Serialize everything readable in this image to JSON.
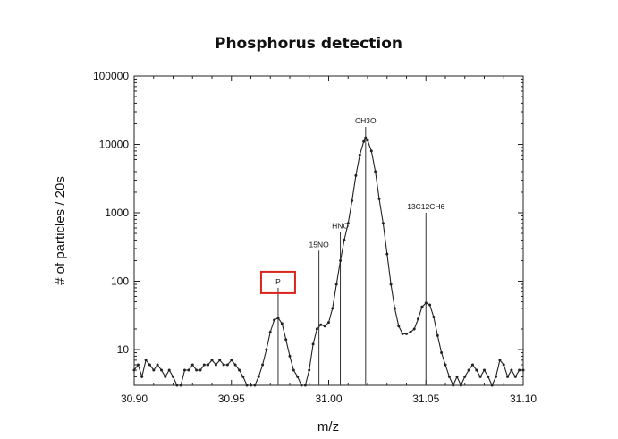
{
  "chart_data": {
    "type": "line",
    "title": "Phosphorus detection",
    "xlabel": "m/z",
    "ylabel": "# of particles / 20s",
    "xlim": [
      30.9,
      31.1
    ],
    "ylim": [
      3,
      100000
    ],
    "yscale": "log",
    "grid": false,
    "x_ticks": [
      "30.90",
      "30.95",
      "31.00",
      "31.05",
      "31.10"
    ],
    "x_tick_values": [
      30.9,
      30.95,
      31.0,
      31.05,
      31.1
    ],
    "y_ticks": [
      "10",
      "100",
      "1000",
      "10000",
      "100000"
    ],
    "y_tick_values": [
      10,
      100,
      1000,
      10000,
      100000
    ],
    "series": [
      {
        "color": "#222222",
        "points": [
          [
            30.9,
            5.0
          ],
          [
            30.902,
            6.0
          ],
          [
            30.904,
            4.0
          ],
          [
            30.906,
            7.0
          ],
          [
            30.908,
            6.0
          ],
          [
            30.91,
            5.0
          ],
          [
            30.912,
            6.0
          ],
          [
            30.914,
            5.0
          ],
          [
            30.916,
            4.0
          ],
          [
            30.918,
            5.0
          ],
          [
            30.92,
            4.0
          ],
          [
            30.922,
            3.0
          ],
          [
            30.924,
            3.0
          ],
          [
            30.926,
            5.0
          ],
          [
            30.928,
            5.0
          ],
          [
            30.93,
            6.0
          ],
          [
            30.932,
            5.0
          ],
          [
            30.934,
            5.0
          ],
          [
            30.936,
            6.0
          ],
          [
            30.938,
            6.0
          ],
          [
            30.94,
            7.0
          ],
          [
            30.942,
            6.0
          ],
          [
            30.944,
            7.0
          ],
          [
            30.946,
            6.0
          ],
          [
            30.948,
            6.0
          ],
          [
            30.95,
            7.0
          ],
          [
            30.952,
            6.0
          ],
          [
            30.954,
            5.0
          ],
          [
            30.956,
            4.0
          ],
          [
            30.958,
            3.0
          ],
          [
            30.96,
            3.0
          ],
          [
            30.962,
            3.0
          ],
          [
            30.964,
            4.0
          ],
          [
            30.966,
            6.0
          ],
          [
            30.968,
            10.0
          ],
          [
            30.97,
            18.0
          ],
          [
            30.972,
            27.0
          ],
          [
            30.974,
            29.0
          ],
          [
            30.976,
            24.0
          ],
          [
            30.978,
            14.0
          ],
          [
            30.98,
            8.0
          ],
          [
            30.982,
            5.0
          ],
          [
            30.984,
            4.0
          ],
          [
            30.986,
            3.0
          ],
          [
            30.988,
            3.0
          ],
          [
            30.99,
            5.0
          ],
          [
            30.992,
            12.0
          ],
          [
            30.994,
            20.0
          ],
          [
            30.996,
            23.0
          ],
          [
            30.998,
            22.0
          ],
          [
            31.0,
            25.0
          ],
          [
            31.002,
            40.0
          ],
          [
            31.004,
            90.0
          ],
          [
            31.006,
            200.0
          ],
          [
            31.008,
            400.0
          ],
          [
            31.01,
            700.0
          ],
          [
            31.012,
            1500.0
          ],
          [
            31.014,
            3500.0
          ],
          [
            31.016,
            7000.0
          ],
          [
            31.018,
            11000.0
          ],
          [
            31.019,
            12500.0
          ],
          [
            31.02,
            11500.0
          ],
          [
            31.022,
            8000.0
          ],
          [
            31.024,
            4000.0
          ],
          [
            31.026,
            1600.0
          ],
          [
            31.028,
            700.0
          ],
          [
            31.03,
            250.0
          ],
          [
            31.032,
            90.0
          ],
          [
            31.034,
            40.0
          ],
          [
            31.036,
            22.0
          ],
          [
            31.038,
            17.0
          ],
          [
            31.04,
            17.0
          ],
          [
            31.042,
            18.0
          ],
          [
            31.044,
            20.0
          ],
          [
            31.046,
            28.0
          ],
          [
            31.048,
            42.0
          ],
          [
            31.05,
            48.0
          ],
          [
            31.052,
            45.0
          ],
          [
            31.054,
            30.0
          ],
          [
            31.056,
            16.0
          ],
          [
            31.058,
            9.0
          ],
          [
            31.06,
            6.0
          ],
          [
            31.062,
            4.0
          ],
          [
            31.064,
            3.0
          ],
          [
            31.066,
            4.0
          ],
          [
            31.068,
            3.0
          ],
          [
            31.07,
            4.0
          ],
          [
            31.072,
            5.0
          ],
          [
            31.074,
            6.0
          ],
          [
            31.076,
            5.0
          ],
          [
            31.078,
            4.0
          ],
          [
            31.08,
            5.0
          ],
          [
            31.082,
            4.0
          ],
          [
            31.084,
            3.0
          ],
          [
            31.086,
            4.0
          ],
          [
            31.088,
            7.0
          ],
          [
            31.09,
            6.0
          ],
          [
            31.092,
            4.0
          ],
          [
            31.094,
            5.0
          ],
          [
            31.096,
            4.0
          ],
          [
            31.098,
            5.0
          ],
          [
            31.1,
            5.0
          ]
        ]
      }
    ],
    "annotations": [
      {
        "label": "P",
        "x": 30.974,
        "y_top": 80,
        "boxed": true,
        "box_color": "#d9261c"
      },
      {
        "label": "15NO",
        "x": 30.995,
        "y_top": 280,
        "boxed": false
      },
      {
        "label": "HNO",
        "x": 31.006,
        "y_top": 520,
        "boxed": false
      },
      {
        "label": "CH3O",
        "x": 31.019,
        "y_top": 18000,
        "boxed": false
      },
      {
        "label": "13C12CH6",
        "x": 31.05,
        "y_top": 1000,
        "boxed": false
      }
    ]
  }
}
